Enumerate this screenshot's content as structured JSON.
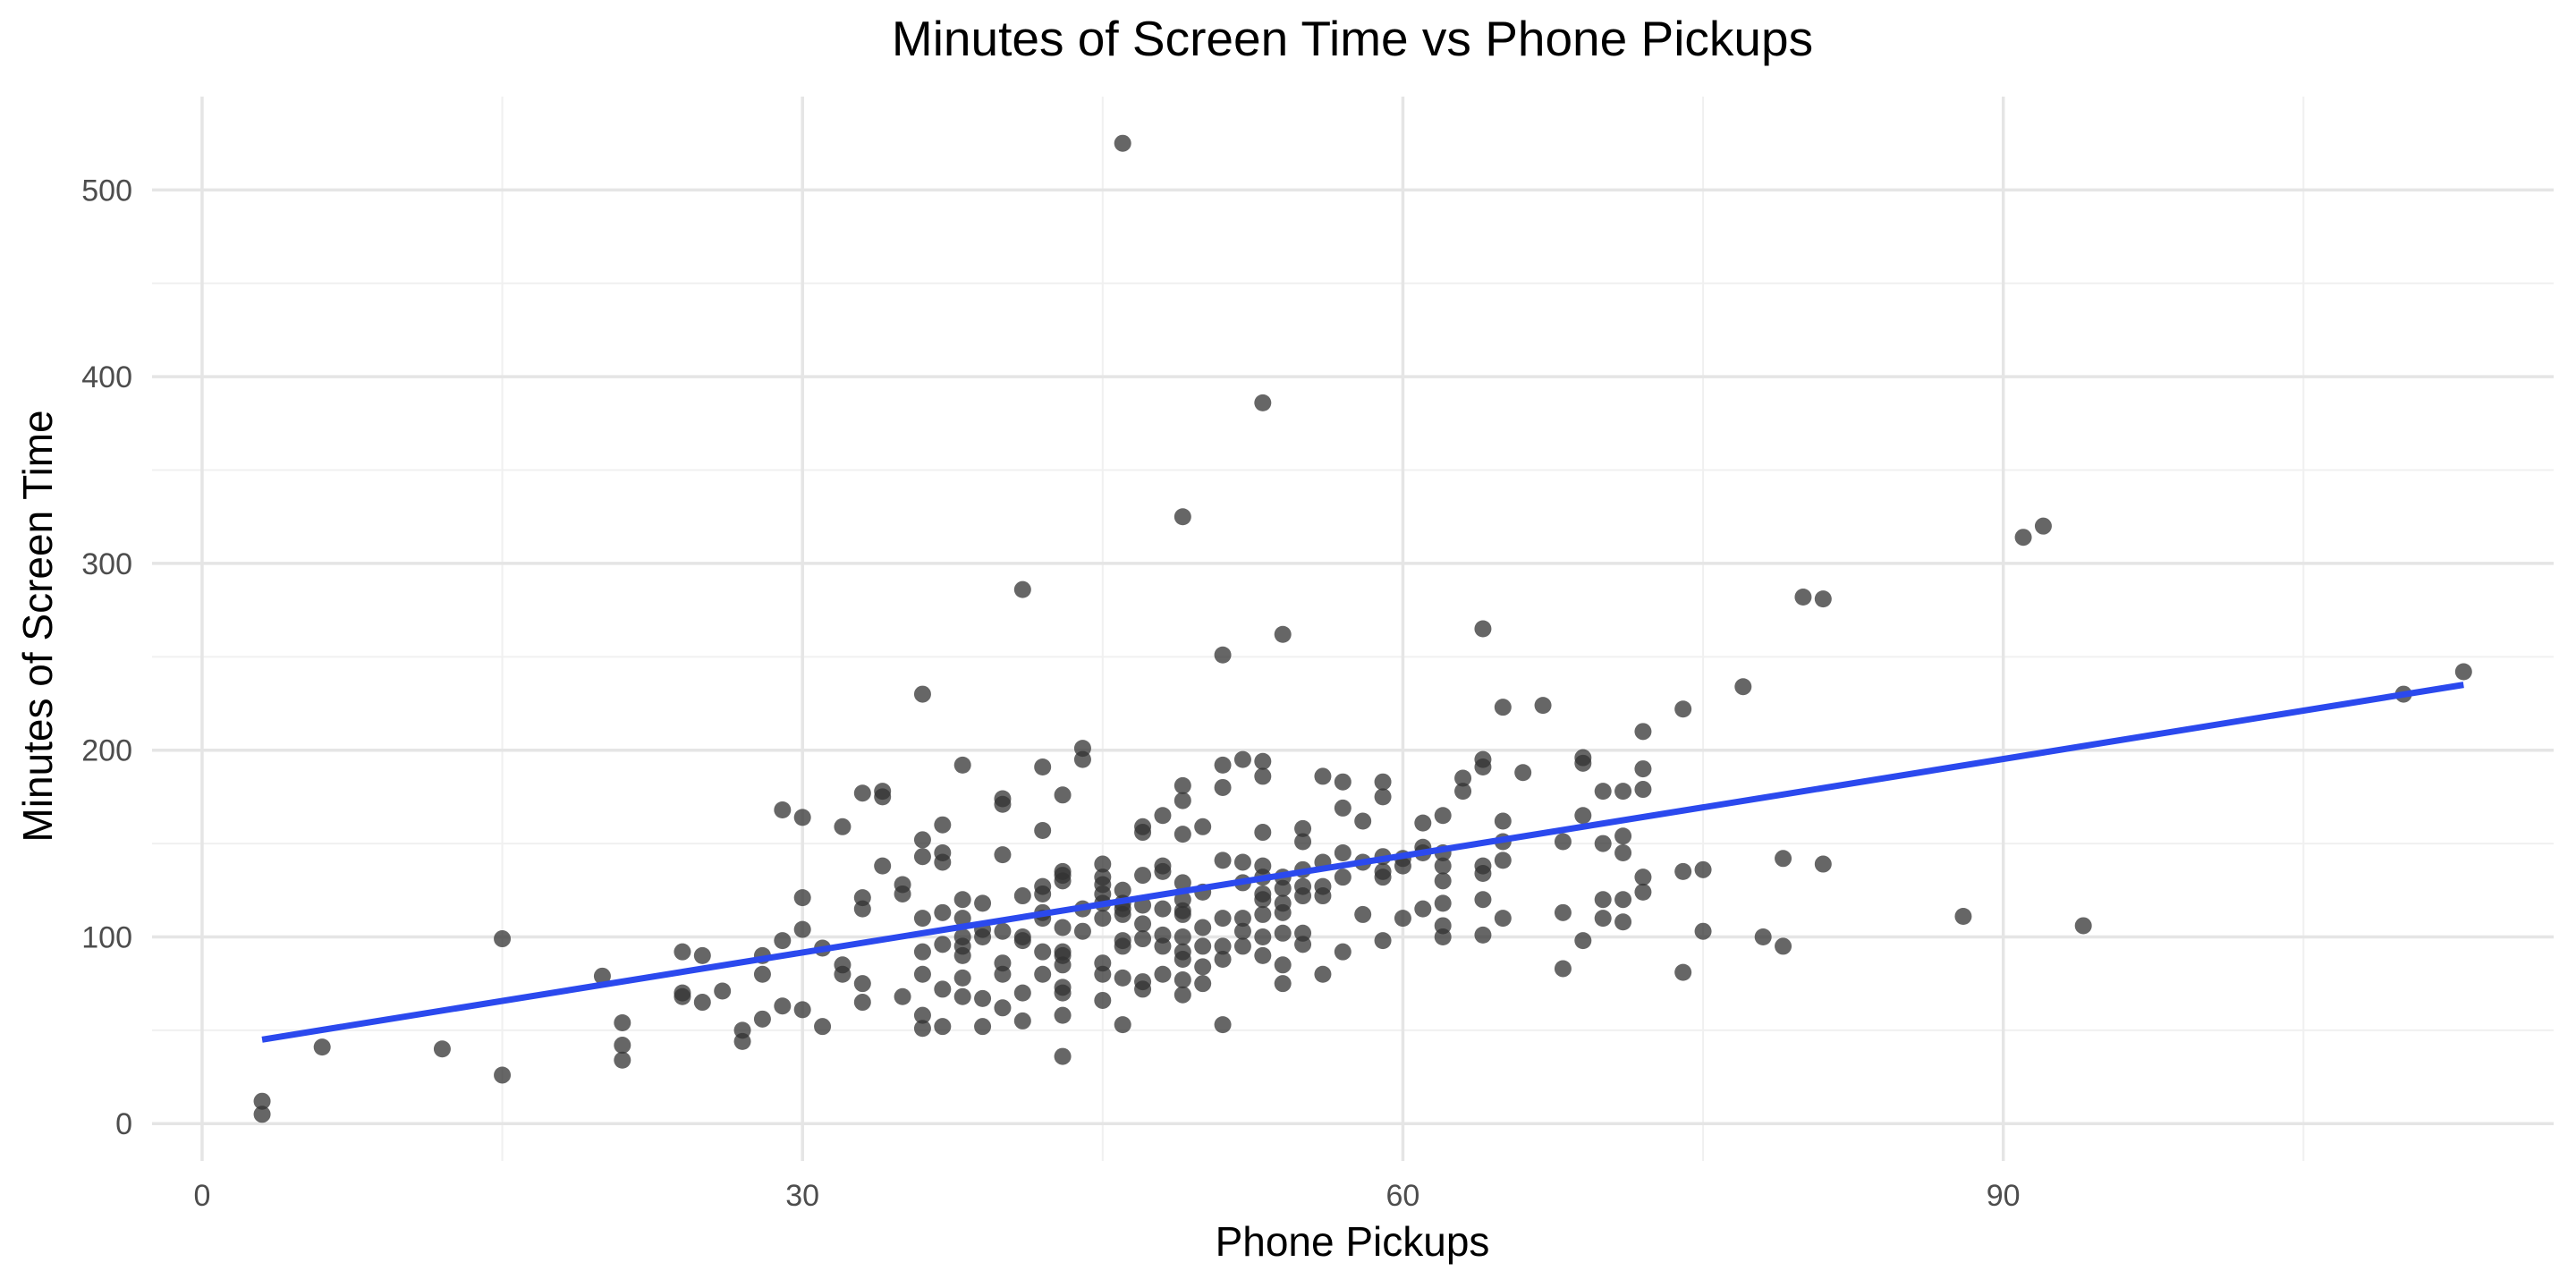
{
  "chart_data": {
    "type": "scatter",
    "title": "Minutes of Screen Time vs Phone Pickups",
    "xlabel": "Phone Pickups",
    "ylabel": "Minutes of Screen Time",
    "xlim": [
      -2.5,
      117.5
    ],
    "ylim": [
      -20,
      550
    ],
    "x_ticks": [
      0,
      30,
      60,
      90
    ],
    "y_ticks": [
      0,
      100,
      200,
      300,
      400,
      500
    ],
    "grid": true,
    "point_color": "#333333",
    "trend_color": "#2b49ee",
    "trend_line": {
      "x": [
        3,
        113
      ],
      "y": [
        45,
        235
      ]
    },
    "points": [
      [
        3,
        5
      ],
      [
        3,
        12
      ],
      [
        6,
        41
      ],
      [
        12,
        40
      ],
      [
        15,
        26
      ],
      [
        15,
        99
      ],
      [
        20,
        79
      ],
      [
        21,
        34
      ],
      [
        21,
        42
      ],
      [
        21,
        54
      ],
      [
        24,
        68
      ],
      [
        24,
        70
      ],
      [
        24,
        92
      ],
      [
        25,
        65
      ],
      [
        25,
        90
      ],
      [
        26,
        71
      ],
      [
        27,
        44
      ],
      [
        27,
        50
      ],
      [
        28,
        56
      ],
      [
        28,
        80
      ],
      [
        28,
        90
      ],
      [
        29,
        63
      ],
      [
        29,
        98
      ],
      [
        29,
        168
      ],
      [
        30,
        61
      ],
      [
        30,
        104
      ],
      [
        30,
        121
      ],
      [
        30,
        164
      ],
      [
        31,
        52
      ],
      [
        31,
        94
      ],
      [
        32,
        80
      ],
      [
        32,
        85
      ],
      [
        32,
        159
      ],
      [
        33,
        65
      ],
      [
        33,
        75
      ],
      [
        33,
        115
      ],
      [
        33,
        121
      ],
      [
        33,
        177
      ],
      [
        34,
        138
      ],
      [
        34,
        175
      ],
      [
        34,
        178
      ],
      [
        35,
        68
      ],
      [
        35,
        123
      ],
      [
        35,
        128
      ],
      [
        36,
        51
      ],
      [
        36,
        58
      ],
      [
        36,
        80
      ],
      [
        36,
        92
      ],
      [
        36,
        110
      ],
      [
        36,
        143
      ],
      [
        36,
        152
      ],
      [
        36,
        230
      ],
      [
        37,
        52
      ],
      [
        37,
        72
      ],
      [
        37,
        96
      ],
      [
        37,
        113
      ],
      [
        37,
        140
      ],
      [
        37,
        145
      ],
      [
        37,
        160
      ],
      [
        38,
        68
      ],
      [
        38,
        78
      ],
      [
        38,
        90
      ],
      [
        38,
        95
      ],
      [
        38,
        100
      ],
      [
        38,
        110
      ],
      [
        38,
        120
      ],
      [
        38,
        192
      ],
      [
        39,
        52
      ],
      [
        39,
        67
      ],
      [
        39,
        100
      ],
      [
        39,
        104
      ],
      [
        39,
        118
      ],
      [
        40,
        62
      ],
      [
        40,
        80
      ],
      [
        40,
        86
      ],
      [
        40,
        103
      ],
      [
        40,
        144
      ],
      [
        40,
        171
      ],
      [
        40,
        174
      ],
      [
        41,
        55
      ],
      [
        41,
        70
      ],
      [
        41,
        98
      ],
      [
        41,
        100
      ],
      [
        41,
        122
      ],
      [
        41,
        286
      ],
      [
        42,
        80
      ],
      [
        42,
        92
      ],
      [
        42,
        110
      ],
      [
        42,
        113
      ],
      [
        42,
        123
      ],
      [
        42,
        127
      ],
      [
        42,
        157
      ],
      [
        42,
        191
      ],
      [
        43,
        36
      ],
      [
        43,
        58
      ],
      [
        43,
        70
      ],
      [
        43,
        73
      ],
      [
        43,
        85
      ],
      [
        43,
        90
      ],
      [
        43,
        92
      ],
      [
        43,
        105
      ],
      [
        43,
        130
      ],
      [
        43,
        133
      ],
      [
        43,
        135
      ],
      [
        43,
        176
      ],
      [
        44,
        103
      ],
      [
        44,
        115
      ],
      [
        44,
        195
      ],
      [
        44,
        201
      ],
      [
        45,
        66
      ],
      [
        45,
        80
      ],
      [
        45,
        86
      ],
      [
        45,
        110
      ],
      [
        45,
        118
      ],
      [
        45,
        123
      ],
      [
        45,
        128
      ],
      [
        45,
        132
      ],
      [
        45,
        139
      ],
      [
        46,
        53
      ],
      [
        46,
        78
      ],
      [
        46,
        95
      ],
      [
        46,
        98
      ],
      [
        46,
        112
      ],
      [
        46,
        115
      ],
      [
        46,
        118
      ],
      [
        46,
        125
      ],
      [
        46,
        525
      ],
      [
        47,
        72
      ],
      [
        47,
        76
      ],
      [
        47,
        99
      ],
      [
        47,
        107
      ],
      [
        47,
        117
      ],
      [
        47,
        133
      ],
      [
        47,
        156
      ],
      [
        47,
        159
      ],
      [
        48,
        80
      ],
      [
        48,
        95
      ],
      [
        48,
        101
      ],
      [
        48,
        115
      ],
      [
        48,
        135
      ],
      [
        48,
        138
      ],
      [
        48,
        165
      ],
      [
        49,
        69
      ],
      [
        49,
        77
      ],
      [
        49,
        88
      ],
      [
        49,
        92
      ],
      [
        49,
        100
      ],
      [
        49,
        112
      ],
      [
        49,
        114
      ],
      [
        49,
        120
      ],
      [
        49,
        129
      ],
      [
        49,
        155
      ],
      [
        49,
        173
      ],
      [
        49,
        181
      ],
      [
        49,
        325
      ],
      [
        50,
        75
      ],
      [
        50,
        84
      ],
      [
        50,
        95
      ],
      [
        50,
        105
      ],
      [
        50,
        124
      ],
      [
        50,
        159
      ],
      [
        51,
        53
      ],
      [
        51,
        88
      ],
      [
        51,
        95
      ],
      [
        51,
        110
      ],
      [
        51,
        141
      ],
      [
        51,
        180
      ],
      [
        51,
        192
      ],
      [
        51,
        251
      ],
      [
        52,
        95
      ],
      [
        52,
        103
      ],
      [
        52,
        110
      ],
      [
        52,
        129
      ],
      [
        52,
        140
      ],
      [
        52,
        195
      ],
      [
        53,
        90
      ],
      [
        53,
        100
      ],
      [
        53,
        112
      ],
      [
        53,
        120
      ],
      [
        53,
        123
      ],
      [
        53,
        132
      ],
      [
        53,
        138
      ],
      [
        53,
        156
      ],
      [
        53,
        186
      ],
      [
        53,
        194
      ],
      [
        53,
        386
      ],
      [
        54,
        75
      ],
      [
        54,
        85
      ],
      [
        54,
        102
      ],
      [
        54,
        113
      ],
      [
        54,
        118
      ],
      [
        54,
        126
      ],
      [
        54,
        132
      ],
      [
        54,
        262
      ],
      [
        55,
        96
      ],
      [
        55,
        102
      ],
      [
        55,
        122
      ],
      [
        55,
        127
      ],
      [
        55,
        136
      ],
      [
        55,
        151
      ],
      [
        55,
        158
      ],
      [
        56,
        80
      ],
      [
        56,
        122
      ],
      [
        56,
        127
      ],
      [
        56,
        140
      ],
      [
        56,
        186
      ],
      [
        57,
        92
      ],
      [
        57,
        132
      ],
      [
        57,
        145
      ],
      [
        57,
        169
      ],
      [
        57,
        183
      ],
      [
        58,
        112
      ],
      [
        58,
        140
      ],
      [
        58,
        162
      ],
      [
        59,
        98
      ],
      [
        59,
        132
      ],
      [
        59,
        135
      ],
      [
        59,
        143
      ],
      [
        59,
        175
      ],
      [
        59,
        183
      ],
      [
        60,
        110
      ],
      [
        60,
        138
      ],
      [
        60,
        142
      ],
      [
        61,
        115
      ],
      [
        61,
        145
      ],
      [
        61,
        148
      ],
      [
        61,
        161
      ],
      [
        62,
        100
      ],
      [
        62,
        106
      ],
      [
        62,
        118
      ],
      [
        62,
        130
      ],
      [
        62,
        138
      ],
      [
        62,
        145
      ],
      [
        62,
        165
      ],
      [
        63,
        178
      ],
      [
        63,
        185
      ],
      [
        64,
        101
      ],
      [
        64,
        120
      ],
      [
        64,
        134
      ],
      [
        64,
        138
      ],
      [
        64,
        191
      ],
      [
        64,
        195
      ],
      [
        64,
        265
      ],
      [
        65,
        110
      ],
      [
        65,
        141
      ],
      [
        65,
        151
      ],
      [
        65,
        162
      ],
      [
        65,
        223
      ],
      [
        66,
        188
      ],
      [
        67,
        224
      ],
      [
        68,
        83
      ],
      [
        68,
        113
      ],
      [
        68,
        151
      ],
      [
        69,
        98
      ],
      [
        69,
        165
      ],
      [
        69,
        193
      ],
      [
        69,
        196
      ],
      [
        70,
        110
      ],
      [
        70,
        120
      ],
      [
        70,
        150
      ],
      [
        70,
        178
      ],
      [
        71,
        108
      ],
      [
        71,
        120
      ],
      [
        71,
        145
      ],
      [
        71,
        154
      ],
      [
        71,
        178
      ],
      [
        72,
        124
      ],
      [
        72,
        132
      ],
      [
        72,
        179
      ],
      [
        72,
        190
      ],
      [
        72,
        210
      ],
      [
        74,
        81
      ],
      [
        74,
        135
      ],
      [
        74,
        222
      ],
      [
        75,
        103
      ],
      [
        75,
        136
      ],
      [
        77,
        234
      ],
      [
        78,
        100
      ],
      [
        79,
        95
      ],
      [
        79,
        142
      ],
      [
        80,
        282
      ],
      [
        81,
        139
      ],
      [
        81,
        281
      ],
      [
        88,
        111
      ],
      [
        91,
        314
      ],
      [
        92,
        320
      ],
      [
        94,
        106
      ],
      [
        110,
        230
      ],
      [
        113,
        242
      ]
    ]
  }
}
